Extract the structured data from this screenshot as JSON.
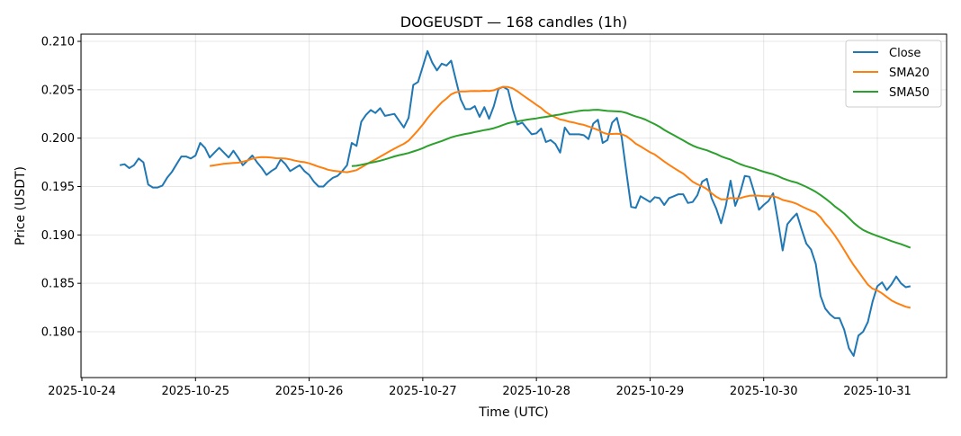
{
  "chart_data": {
    "type": "line",
    "title": "DOGEUSDT — 168 candles (1h)",
    "xlabel": "Time (UTC)",
    "ylabel": "Price (USDT)",
    "ylim": [
      0.1755,
      0.2105
    ],
    "yticks": [
      "0.180",
      "0.185",
      "0.190",
      "0.195",
      "0.200",
      "0.205",
      "0.210"
    ],
    "xticks": [
      "2025-10-24",
      "2025-10-25",
      "2025-10-26",
      "2025-10-27",
      "2025-10-28",
      "2025-10-29",
      "2025-10-30",
      "2025-10-31"
    ],
    "grid": true,
    "legend_position": "top-right",
    "start_hour_offset": 8,
    "interval_hours": 1,
    "series": [
      {
        "name": "Close",
        "color": "#1f77b4",
        "values": [
          0.1972,
          0.1973,
          0.1969,
          0.1972,
          0.1979,
          0.1975,
          0.1952,
          0.1949,
          0.1949,
          0.1951,
          0.1959,
          0.1965,
          0.1973,
          0.1981,
          0.1981,
          0.1979,
          0.1982,
          0.1995,
          0.199,
          0.198,
          0.1985,
          0.199,
          0.1985,
          0.198,
          0.1987,
          0.198,
          0.1972,
          0.1977,
          0.1982,
          0.1975,
          0.1969,
          0.1962,
          0.1966,
          0.1969,
          0.1978,
          0.1973,
          0.1966,
          0.1969,
          0.1972,
          0.1966,
          0.1962,
          0.1955,
          0.195,
          0.195,
          0.1955,
          0.1959,
          0.1961,
          0.1966,
          0.1972,
          0.1995,
          0.1992,
          0.2017,
          0.2024,
          0.2029,
          0.2026,
          0.2031,
          0.2023,
          0.2024,
          0.2025,
          0.2018,
          0.2011,
          0.2021,
          0.2055,
          0.2058,
          0.2074,
          0.209,
          0.2078,
          0.207,
          0.2077,
          0.2075,
          0.208,
          0.206,
          0.204,
          0.203,
          0.203,
          0.2033,
          0.2022,
          0.2032,
          0.202,
          0.2033,
          0.2051,
          0.2053,
          0.205,
          0.203,
          0.2014,
          0.2016,
          0.201,
          0.2004,
          0.2005,
          0.201,
          0.1996,
          0.1998,
          0.1994,
          0.1985,
          0.2011,
          0.2004,
          0.2004,
          0.2004,
          0.2003,
          0.1999,
          0.2015,
          0.2019,
          0.1995,
          0.1998,
          0.2016,
          0.2021,
          0.2001,
          0.1965,
          0.1929,
          0.1928,
          0.194,
          0.1937,
          0.1934,
          0.1939,
          0.1938,
          0.1931,
          0.1938,
          0.194,
          0.1942,
          0.1942,
          0.1933,
          0.1934,
          0.1941,
          0.1955,
          0.1958,
          0.1938,
          0.1927,
          0.1912,
          0.193,
          0.1956,
          0.193,
          0.1943,
          0.1961,
          0.196,
          0.1944,
          0.1926,
          0.1931,
          0.1935,
          0.1943,
          0.1915,
          0.1884,
          0.1911,
          0.1917,
          0.1922,
          0.1906,
          0.1891,
          0.1885,
          0.187,
          0.1837,
          0.1824,
          0.1818,
          0.1814,
          0.1814,
          0.1802,
          0.1783,
          0.1775,
          0.1796,
          0.18,
          0.181,
          0.1831,
          0.1847,
          0.1851,
          0.1843,
          0.1849,
          0.1857,
          0.185,
          0.1846,
          0.1847
        ]
      },
      {
        "name": "SMA20",
        "color": "#ff7f0e",
        "window": 20
      },
      {
        "name": "SMA50",
        "color": "#2ca02c",
        "window": 50
      }
    ]
  }
}
